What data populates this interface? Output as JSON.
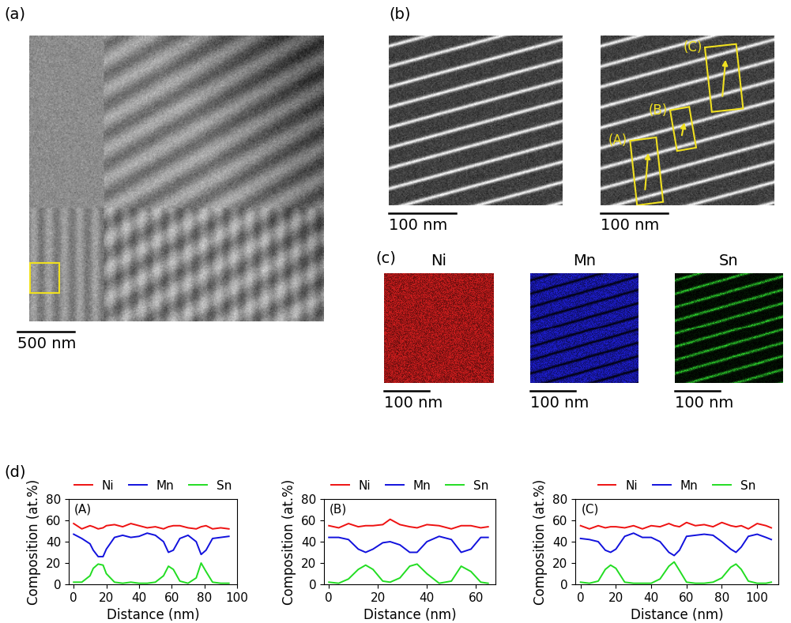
{
  "panels": [
    {
      "label": "(a)",
      "scale_bar": "500 nm"
    },
    {
      "label": "(b)",
      "scale_bar": "100 nm",
      "regions": [
        "(A)",
        "(B)",
        "(C)"
      ]
    },
    {
      "label": "(c)",
      "scale_bar": "100 nm",
      "maps": [
        {
          "name": "Ni",
          "color": "#e02020"
        },
        {
          "name": "Mn",
          "color": "#2020e0"
        },
        {
          "name": "Sn",
          "color": "#30e030"
        }
      ]
    },
    {
      "label": "(d)"
    }
  ],
  "chart_data": [
    {
      "type": "line",
      "annotation": "(A)",
      "xlabel": "Distance (nm)",
      "ylabel": "Composition (at.%)",
      "xlim": [
        -3,
        100
      ],
      "ylim": [
        0,
        80
      ],
      "xticks": [
        0,
        20,
        40,
        60,
        80,
        100
      ],
      "yticks": [
        0,
        20,
        40,
        60,
        80
      ],
      "legend": "top",
      "x": [
        0,
        5,
        10,
        12,
        15,
        18,
        20,
        25,
        30,
        35,
        40,
        45,
        50,
        55,
        58,
        61,
        65,
        70,
        75,
        78,
        81,
        85,
        90,
        95
      ],
      "series": [
        {
          "name": "Ni",
          "color": "#ee1111",
          "values": [
            57,
            52,
            55,
            54,
            52,
            53,
            55,
            56,
            54,
            57,
            55,
            53,
            54,
            52,
            54,
            55,
            55,
            53,
            52,
            54,
            55,
            52,
            53,
            52
          ]
        },
        {
          "name": "Mn",
          "color": "#1111dd",
          "values": [
            47,
            43,
            38,
            32,
            26,
            26,
            33,
            44,
            46,
            44,
            45,
            48,
            46,
            40,
            30,
            32,
            43,
            46,
            40,
            28,
            32,
            43,
            44,
            45
          ]
        },
        {
          "name": "Sn",
          "color": "#22dd22",
          "values": [
            2,
            2,
            8,
            15,
            19,
            18,
            10,
            2,
            1,
            2,
            1,
            1,
            2,
            8,
            17,
            14,
            3,
            1,
            6,
            20,
            12,
            2,
            1,
            1
          ]
        }
      ]
    },
    {
      "type": "line",
      "annotation": "(B)",
      "xlabel": "Distance (nm)",
      "ylabel": "Composition (at.%)",
      "xlim": [
        -2,
        68
      ],
      "ylim": [
        0,
        80
      ],
      "xticks": [
        0,
        20,
        40,
        60
      ],
      "yticks": [
        0,
        20,
        40,
        60,
        80
      ],
      "legend": "top",
      "x": [
        0,
        4,
        8,
        12,
        15,
        18,
        22,
        25,
        29,
        33,
        36,
        40,
        45,
        50,
        54,
        58,
        62,
        65
      ],
      "series": [
        {
          "name": "Ni",
          "color": "#ee1111",
          "values": [
            55,
            53,
            57,
            54,
            55,
            55,
            56,
            61,
            56,
            54,
            53,
            56,
            55,
            52,
            55,
            55,
            53,
            54
          ]
        },
        {
          "name": "Mn",
          "color": "#1111dd",
          "values": [
            44,
            44,
            42,
            33,
            30,
            33,
            39,
            40,
            37,
            30,
            30,
            40,
            45,
            42,
            30,
            33,
            44,
            44
          ]
        },
        {
          "name": "Sn",
          "color": "#22dd22",
          "values": [
            2,
            1,
            5,
            14,
            18,
            14,
            3,
            2,
            6,
            17,
            19,
            10,
            1,
            3,
            17,
            12,
            2,
            1
          ]
        }
      ]
    },
    {
      "type": "line",
      "annotation": "(C)",
      "xlabel": "Distance (nm)",
      "ylabel": "Composition (at.%)",
      "xlim": [
        -3,
        112
      ],
      "ylim": [
        0,
        80
      ],
      "xticks": [
        0,
        20,
        40,
        60,
        80,
        100
      ],
      "yticks": [
        0,
        20,
        40,
        60,
        80
      ],
      "legend": "top",
      "x": [
        0,
        5,
        10,
        14,
        17,
        20,
        25,
        30,
        35,
        40,
        45,
        50,
        53,
        56,
        60,
        65,
        70,
        75,
        80,
        85,
        88,
        91,
        95,
        100,
        105,
        108
      ],
      "series": [
        {
          "name": "Ni",
          "color": "#ee1111",
          "values": [
            55,
            52,
            55,
            53,
            54,
            54,
            53,
            55,
            52,
            55,
            54,
            57,
            55,
            54,
            58,
            55,
            56,
            54,
            58,
            55,
            54,
            55,
            52,
            57,
            55,
            53
          ]
        },
        {
          "name": "Mn",
          "color": "#1111dd",
          "values": [
            43,
            42,
            40,
            32,
            30,
            33,
            45,
            48,
            44,
            44,
            40,
            30,
            27,
            32,
            45,
            46,
            47,
            46,
            40,
            33,
            30,
            35,
            45,
            47,
            44,
            42
          ]
        },
        {
          "name": "Sn",
          "color": "#22dd22",
          "values": [
            2,
            1,
            3,
            14,
            18,
            15,
            2,
            1,
            1,
            1,
            5,
            17,
            21,
            13,
            2,
            1,
            1,
            2,
            6,
            16,
            19,
            14,
            3,
            1,
            1,
            2
          ]
        }
      ]
    }
  ]
}
